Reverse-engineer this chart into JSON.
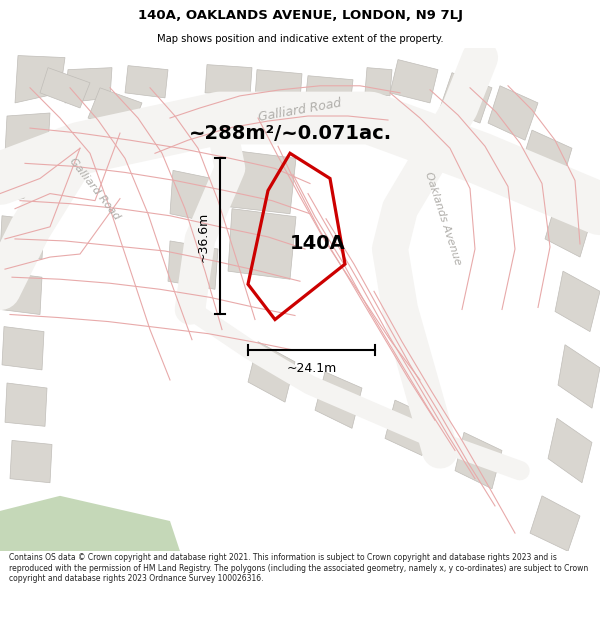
{
  "title": "140A, OAKLANDS AVENUE, LONDON, N9 7LJ",
  "subtitle": "Map shows position and indicative extent of the property.",
  "area_label": "~288m²/~0.071ac.",
  "property_label": "140A",
  "dim_width": "~24.1m",
  "dim_height": "~36.6m",
  "footer": "Contains OS data © Crown copyright and database right 2021. This information is subject to Crown copyright and database rights 2023 and is reproduced with the permission of HM Land Registry. The polygons (including the associated geometry, namely x, y co-ordinates) are subject to Crown copyright and database rights 2023 Ordnance Survey 100026316.",
  "map_bg": "#eeece8",
  "road_color": "#f5f4f2",
  "building_color": "#d9d6d0",
  "building_edge": "#c0bdb8",
  "road_label_color": "#b0aeaa",
  "property_poly_color": "#cc0000",
  "dim_color": "#111111",
  "title_color": "#000000",
  "footer_color": "#222222",
  "pink_line_color": "#e8aaaa",
  "green_area_color": "#c5d8b8"
}
